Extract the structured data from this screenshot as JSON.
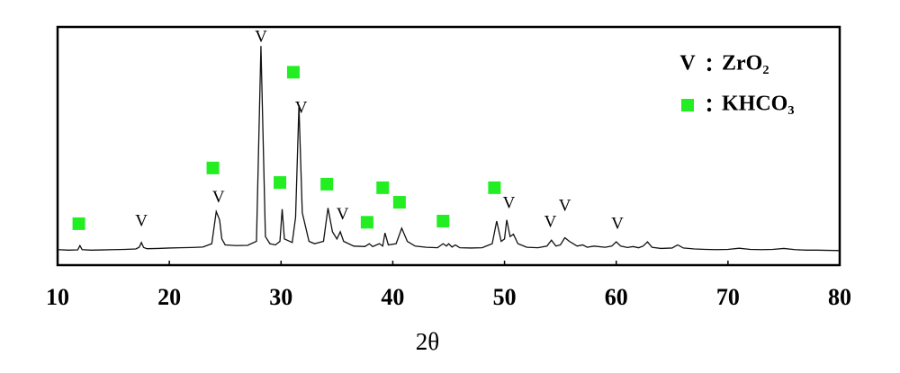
{
  "chart_data": {
    "type": "line",
    "xlabel": "2θ",
    "color": "#111111",
    "xlim": [
      10,
      80
    ],
    "xticks": [
      10,
      20,
      30,
      40,
      50,
      60,
      70,
      80
    ],
    "ylim": [
      0,
      100
    ],
    "x": [
      10,
      11,
      11.8,
      12,
      12.2,
      13,
      14,
      15,
      16,
      17,
      17.3,
      17.5,
      17.7,
      18,
      19,
      20,
      21,
      22,
      23,
      23.8,
      24.2,
      24.5,
      24.7,
      25,
      26,
      27,
      27.8,
      28.2,
      28.6,
      29,
      29.5,
      29.9,
      30.1,
      30.3,
      31,
      31.3,
      31.6,
      31.9,
      32.5,
      33,
      33.8,
      34.2,
      34.6,
      35,
      35.3,
      35.6,
      36.5,
      37.5,
      37.9,
      38.2,
      38.8,
      39.1,
      39.3,
      39.6,
      40.3,
      40.8,
      41.3,
      42,
      43,
      44,
      44.5,
      44.8,
      45,
      45.3,
      45.6,
      46,
      47,
      48,
      48.9,
      49.3,
      49.7,
      50,
      50.2,
      50.5,
      50.8,
      51.2,
      52,
      53,
      53.8,
      54.2,
      54.6,
      55,
      55.4,
      55.8,
      56.5,
      57,
      57.4,
      58,
      59,
      59.6,
      60,
      60.4,
      61,
      61.5,
      62,
      62.4,
      62.8,
      63.2,
      64,
      65,
      65.5,
      66,
      67,
      68,
      69,
      70,
      71,
      72,
      73,
      74,
      75,
      76,
      77,
      78,
      79,
      80
    ],
    "values": [
      6.5,
      6.3,
      6.4,
      8.2,
      6.5,
      6.3,
      6.4,
      6.5,
      6.6,
      6.8,
      7.5,
      9.5,
      7.4,
      6.9,
      7.0,
      7.2,
      7.3,
      7.4,
      7.6,
      9,
      22.5,
      19,
      11,
      8.5,
      8.2,
      8.3,
      10,
      92,
      12,
      9,
      8.5,
      10,
      23.5,
      11,
      9.5,
      20,
      67,
      22,
      10,
      9,
      10,
      24,
      14,
      11,
      14,
      10,
      8,
      7.8,
      9,
      7.8,
      9,
      8,
      13.5,
      8.5,
      9,
      15.5,
      10,
      8,
      7.5,
      7.3,
      9,
      8,
      9,
      7.6,
      8.5,
      7.3,
      7.2,
      7.3,
      9,
      18.5,
      10,
      11,
      19,
      12,
      13,
      9,
      7.5,
      7.3,
      8,
      10.5,
      8,
      8.5,
      11.5,
      10,
      8,
      8.5,
      7.5,
      8,
      7.5,
      8,
      9.8,
      8,
      7.4,
      7.8,
      7.3,
      8,
      9.8,
      7.5,
      7,
      7.2,
      8.5,
      7.2,
      6.8,
      6.6,
      6.5,
      6.6,
      7.1,
      6.6,
      6.5,
      6.6,
      7,
      6.5,
      6.3,
      6.3,
      6.2,
      6.1
    ],
    "markers": [
      {
        "name": "ZrO₂",
        "symbol": "V",
        "color": "#000000",
        "x": [
          17.5,
          24.4,
          28.2,
          31.8,
          35.5,
          50.4,
          54.1,
          55.4,
          60.1
        ],
        "y": [
          18,
          28,
          95.5,
          65.7,
          20.8,
          25.7,
          17.7,
          24.5,
          17
        ]
      },
      {
        "name": "KHCO₃",
        "symbol": "square",
        "color": "#22ee22",
        "x": [
          11.9,
          23.9,
          31.1,
          29.9,
          34.1,
          37.7,
          39.1,
          40.6,
          44.5,
          49.1
        ],
        "y": [
          17.4,
          40.8,
          81,
          34.7,
          34,
          18,
          32.5,
          26.4,
          18.5,
          32.5
        ]
      }
    ]
  }
}
